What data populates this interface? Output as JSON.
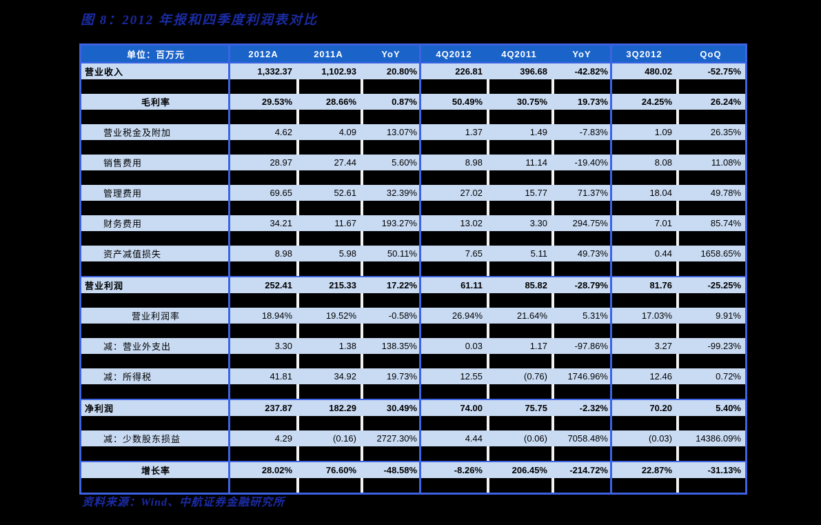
{
  "title": "图 8：2012 年报和四季度利润表对比",
  "source": "资料来源：Wind、中航证券金融研究所",
  "colors": {
    "background": "#000000",
    "header_bg": "#1A63C9",
    "row_bg": "#C9DBF3",
    "border_blue": "#3D63E3",
    "title_text": "#1B2BA3",
    "header_text": "#FFFFFF",
    "cell_text": "#000000"
  },
  "table": {
    "columns": [
      "单位：百万元",
      "2012A",
      "2011A",
      "YoY",
      "4Q2012",
      "4Q2011",
      "YoY",
      "3Q2012",
      "QoQ"
    ],
    "rows": [
      {
        "label": "营业收入",
        "bold": true,
        "align": "left",
        "section": false,
        "values": [
          "1,332.37",
          "1,102.93",
          "20.80%",
          "226.81",
          "396.68",
          "-42.82%",
          "480.02",
          "-52.75%"
        ]
      },
      {
        "label": "毛利率",
        "bold": true,
        "align": "center",
        "section": false,
        "values": [
          "29.53%",
          "28.66%",
          "0.87%",
          "50.49%",
          "30.75%",
          "19.73%",
          "24.25%",
          "26.24%"
        ]
      },
      {
        "label": "营业税金及附加",
        "bold": false,
        "align": "indent",
        "section": false,
        "values": [
          "4.62",
          "4.09",
          "13.07%",
          "1.37",
          "1.49",
          "-7.83%",
          "1.09",
          "26.35%"
        ]
      },
      {
        "label": "销售费用",
        "bold": false,
        "align": "indent",
        "section": false,
        "values": [
          "28.97",
          "27.44",
          "5.60%",
          "8.98",
          "11.14",
          "-19.40%",
          "8.08",
          "11.08%"
        ]
      },
      {
        "label": "管理费用",
        "bold": false,
        "align": "indent",
        "section": false,
        "values": [
          "69.65",
          "52.61",
          "32.39%",
          "27.02",
          "15.77",
          "71.37%",
          "18.04",
          "49.78%"
        ]
      },
      {
        "label": "财务费用",
        "bold": false,
        "align": "indent",
        "section": false,
        "values": [
          "34.21",
          "11.67",
          "193.27%",
          "13.02",
          "3.30",
          "294.75%",
          "7.01",
          "85.74%"
        ]
      },
      {
        "label": "资产减值损失",
        "bold": false,
        "align": "indent",
        "section": false,
        "values": [
          "8.98",
          "5.98",
          "50.11%",
          "7.65",
          "5.11",
          "49.73%",
          "0.44",
          "1658.65%"
        ]
      },
      {
        "label": "营业利润",
        "bold": true,
        "align": "left",
        "section": true,
        "values": [
          "252.41",
          "215.33",
          "17.22%",
          "61.11",
          "85.82",
          "-28.79%",
          "81.76",
          "-25.25%"
        ]
      },
      {
        "label": "营业利润率",
        "bold": false,
        "align": "center",
        "section": false,
        "values": [
          "18.94%",
          "19.52%",
          "-0.58%",
          "26.94%",
          "21.64%",
          "5.31%",
          "17.03%",
          "9.91%"
        ]
      },
      {
        "label": "减：营业外支出",
        "bold": false,
        "align": "indent",
        "section": false,
        "values": [
          "3.30",
          "1.38",
          "138.35%",
          "0.03",
          "1.17",
          "-97.86%",
          "3.27",
          "-99.23%"
        ]
      },
      {
        "label": "减：所得税",
        "bold": false,
        "align": "indent",
        "section": false,
        "values": [
          "41.81",
          "34.92",
          "19.73%",
          "12.55",
          "(0.76)",
          "1746.96%",
          "12.46",
          "0.72%"
        ]
      },
      {
        "label": "净利润",
        "bold": true,
        "align": "left",
        "section": true,
        "values": [
          "237.87",
          "182.29",
          "30.49%",
          "74.00",
          "75.75",
          "-2.32%",
          "70.20",
          "5.40%"
        ]
      },
      {
        "label": "减：少数股东损益",
        "bold": false,
        "align": "indent",
        "section": false,
        "values": [
          "4.29",
          "(0.16)",
          "2727.30%",
          "4.44",
          "(0.06)",
          "7058.48%",
          "(0.03)",
          "14386.09%"
        ]
      },
      {
        "label": "增长率",
        "bold": true,
        "align": "center",
        "section": true,
        "values": [
          "28.02%",
          "76.60%",
          "-48.58%",
          "-8.26%",
          "206.45%",
          "-214.72%",
          "22.87%",
          "-31.13%"
        ]
      }
    ]
  }
}
